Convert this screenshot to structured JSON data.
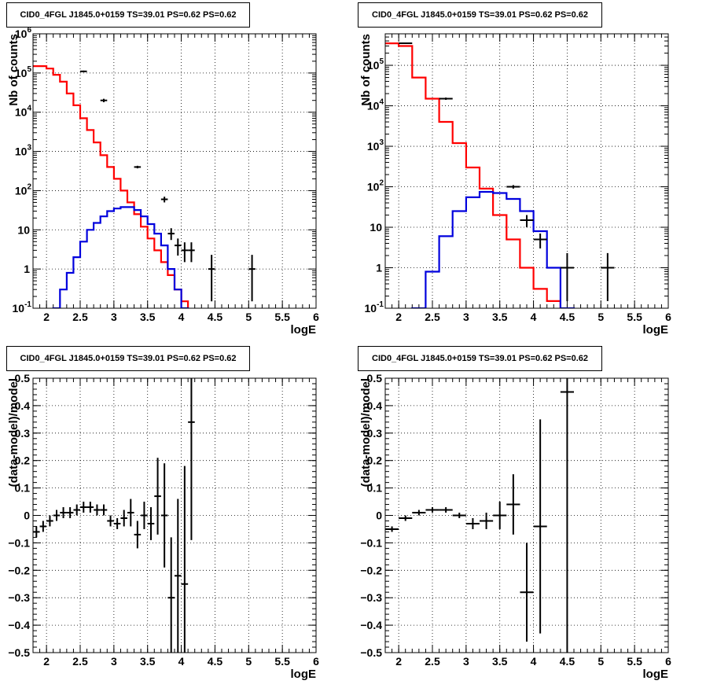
{
  "chart_data": [
    {
      "type": "line",
      "title": "CID0_4FGL J1845.0+0159 TS=39.01 PS=0.62 PS=0.62",
      "xlabel": "logE",
      "ylabel": "Nb of counts",
      "log_y": true,
      "xlim": [
        1.8,
        6.0
      ],
      "ylim": [
        0.1,
        1000000
      ],
      "grid": true,
      "x_ticks": [
        "2",
        "2.5",
        "3",
        "3.5",
        "4",
        "4.5",
        "5",
        "5.5",
        "6"
      ],
      "y_ticks": [
        {
          "v": 0.1,
          "b": "10",
          "e": "-1"
        },
        {
          "v": 1,
          "b": "1",
          "e": ""
        },
        {
          "v": 10,
          "b": "10",
          "e": ""
        },
        {
          "v": 100,
          "b": "10",
          "e": "2"
        },
        {
          "v": 1000,
          "b": "10",
          "e": "3"
        },
        {
          "v": 10000,
          "b": "10",
          "e": "4"
        },
        {
          "v": 100000,
          "b": "10",
          "e": "5"
        },
        {
          "v": 1000000,
          "b": "10",
          "e": "6"
        }
      ],
      "bin_width": 0.1,
      "bin_edges_start": 1.8,
      "series": [
        {
          "color": "#ff0000",
          "line": "step",
          "values": [
            150000,
            150000,
            130000,
            90000,
            60000,
            30000,
            15000,
            7000,
            3500,
            1700,
            800,
            400,
            200,
            100,
            50,
            25,
            12,
            6,
            3,
            1.5,
            0.7,
            0.3,
            0.15,
            0.08,
            0.05,
            0.05,
            0.05,
            0.05,
            0.05,
            0.05,
            0.05,
            0.05,
            0.05,
            0.05,
            0.05,
            0.05,
            0.05,
            0.05,
            0.05,
            0.05,
            0.05,
            0.05
          ]
        },
        {
          "color": "#0000dd",
          "line": "step",
          "values": [
            0.05,
            0.05,
            0.05,
            0.1,
            0.3,
            0.8,
            2,
            5,
            10,
            15,
            22,
            30,
            35,
            38,
            38,
            32,
            22,
            14,
            8,
            4,
            1,
            0.3,
            0.1,
            0.05,
            0.05,
            0.05,
            0.05,
            0.05,
            0.05,
            0.05,
            0.05,
            0.05,
            0.05,
            0.05,
            0.05,
            0.05,
            0.05,
            0.05,
            0.05,
            0.05,
            0.05,
            0.05
          ]
        }
      ],
      "data_points": [
        {
          "x": 2.55,
          "y": 110000,
          "ylo": 105000,
          "yhi": 115000
        },
        {
          "x": 2.85,
          "y": 20000,
          "ylo": 18000,
          "yhi": 22000
        },
        {
          "x": 3.35,
          "y": 400,
          "ylo": 370,
          "yhi": 430
        },
        {
          "x": 3.75,
          "y": 60,
          "ylo": 50,
          "yhi": 70
        },
        {
          "x": 3.85,
          "y": 8,
          "ylo": 5.5,
          "yhi": 11
        },
        {
          "x": 3.95,
          "y": 4,
          "ylo": 2.2,
          "yhi": 6
        },
        {
          "x": 4.05,
          "y": 3,
          "ylo": 1.5,
          "yhi": 4.8
        },
        {
          "x": 4.15,
          "y": 3,
          "ylo": 1.5,
          "yhi": 4.8
        },
        {
          "x": 4.45,
          "y": 1,
          "ylo": 0.15,
          "yhi": 2.3
        },
        {
          "x": 5.05,
          "y": 1,
          "ylo": 0.15,
          "yhi": 2.3
        }
      ]
    },
    {
      "type": "line",
      "title": "CID0_4FGL J1845.0+0159 TS=39.01 PS=0.62 PS=0.62",
      "xlabel": "logE",
      "ylabel": "Nb of counts",
      "log_y": true,
      "xlim": [
        1.8,
        6.0
      ],
      "ylim": [
        0.1,
        600000
      ],
      "grid": true,
      "x_ticks": [
        "2",
        "2.5",
        "3",
        "3.5",
        "4",
        "4.5",
        "5",
        "5.5",
        "6"
      ],
      "y_ticks": [
        {
          "v": 0.1,
          "b": "10",
          "e": "-1"
        },
        {
          "v": 1,
          "b": "1",
          "e": ""
        },
        {
          "v": 10,
          "b": "10",
          "e": ""
        },
        {
          "v": 100,
          "b": "10",
          "e": "2"
        },
        {
          "v": 1000,
          "b": "10",
          "e": "3"
        },
        {
          "v": 10000,
          "b": "10",
          "e": "4"
        },
        {
          "v": 100000,
          "b": "10",
          "e": "5"
        }
      ],
      "bin_width": 0.2,
      "bin_edges_start": 1.8,
      "series": [
        {
          "color": "#ff0000",
          "line": "step",
          "values": [
            350000,
            300000,
            50000,
            15000,
            4000,
            1200,
            300,
            90,
            20,
            5,
            1,
            0.3,
            0.15,
            0.05,
            0.05,
            0.05,
            0.05,
            0.05,
            0.05,
            0.05,
            0.05
          ]
        },
        {
          "color": "#0000dd",
          "line": "step",
          "values": [
            0.05,
            0.05,
            0.1,
            0.8,
            6,
            25,
            55,
            75,
            70,
            50,
            25,
            8,
            1,
            0.1,
            0.05,
            0.05,
            0.05,
            0.05,
            0.05,
            0.05,
            0.05
          ]
        }
      ],
      "data_points": [
        {
          "x": 2.1,
          "y": 350000,
          "ylo": 340000,
          "yhi": 360000
        },
        {
          "x": 2.7,
          "y": 15000,
          "ylo": 14000,
          "yhi": 16000
        },
        {
          "x": 3.7,
          "y": 100,
          "ylo": 90,
          "yhi": 110
        },
        {
          "x": 3.9,
          "y": 15,
          "ylo": 10,
          "yhi": 20
        },
        {
          "x": 4.1,
          "y": 5,
          "ylo": 3,
          "yhi": 7
        },
        {
          "x": 4.5,
          "y": 1,
          "ylo": 0.15,
          "yhi": 2.3
        },
        {
          "x": 5.1,
          "y": 1,
          "ylo": 0.15,
          "yhi": 2.3
        }
      ]
    },
    {
      "type": "scatter",
      "title": "CID0_4FGL J1845.0+0159 TS=39.01 PS=0.62 PS=0.62",
      "xlabel": "logE",
      "ylabel": "(data-model)/model",
      "log_y": false,
      "xlim": [
        1.8,
        6.0
      ],
      "ylim": [
        -0.5,
        0.5
      ],
      "grid": true,
      "x_ticks": [
        "2",
        "2.5",
        "3",
        "3.5",
        "4",
        "4.5",
        "5",
        "5.5",
        "6"
      ],
      "y_ticks": [
        {
          "v": -0.5,
          "t": "−0.5"
        },
        {
          "v": -0.4,
          "t": "−0.4"
        },
        {
          "v": -0.3,
          "t": "−0.3"
        },
        {
          "v": -0.2,
          "t": "−0.2"
        },
        {
          "v": -0.1,
          "t": "−0.1"
        },
        {
          "v": 0,
          "t": "0"
        },
        {
          "v": 0.1,
          "t": "0.1"
        },
        {
          "v": 0.2,
          "t": "0.2"
        },
        {
          "v": 0.3,
          "t": "0.3"
        },
        {
          "v": 0.4,
          "t": "0.4"
        },
        {
          "v": 0.5,
          "t": "0.5"
        }
      ],
      "bin_width": 0.1,
      "points": [
        {
          "x": 1.85,
          "y": -0.06,
          "e": 0.02
        },
        {
          "x": 1.95,
          "y": -0.04,
          "e": 0.02
        },
        {
          "x": 2.05,
          "y": -0.02,
          "e": 0.02
        },
        {
          "x": 2.15,
          "y": 0.0,
          "e": 0.02
        },
        {
          "x": 2.25,
          "y": 0.01,
          "e": 0.02
        },
        {
          "x": 2.35,
          "y": 0.01,
          "e": 0.02
        },
        {
          "x": 2.45,
          "y": 0.02,
          "e": 0.02
        },
        {
          "x": 2.55,
          "y": 0.03,
          "e": 0.02
        },
        {
          "x": 2.65,
          "y": 0.03,
          "e": 0.02
        },
        {
          "x": 2.75,
          "y": 0.02,
          "e": 0.02
        },
        {
          "x": 2.85,
          "y": 0.02,
          "e": 0.02
        },
        {
          "x": 2.95,
          "y": -0.02,
          "e": 0.02
        },
        {
          "x": 3.05,
          "y": -0.03,
          "e": 0.02
        },
        {
          "x": 3.15,
          "y": -0.01,
          "e": 0.03
        },
        {
          "x": 3.25,
          "y": 0.01,
          "e": 0.05
        },
        {
          "x": 3.35,
          "y": -0.07,
          "e": 0.05
        },
        {
          "x": 3.45,
          "y": 0.0,
          "e": 0.05
        },
        {
          "x": 3.55,
          "y": -0.03,
          "e": 0.06
        },
        {
          "x": 3.65,
          "y": 0.07,
          "e": 0.14
        },
        {
          "x": 3.75,
          "y": 0.0,
          "e": 0.19
        },
        {
          "x": 3.85,
          "y": -0.3,
          "e": 0.22
        },
        {
          "x": 3.95,
          "y": -0.22,
          "e": 0.28
        },
        {
          "x": 4.05,
          "y": -0.25,
          "e": 0.43
        },
        {
          "x": 4.15,
          "y": 0.34,
          "e": 0.43
        }
      ]
    },
    {
      "type": "scatter",
      "title": "CID0_4FGL J1845.0+0159 TS=39.01 PS=0.62 PS=0.62",
      "xlabel": "logE",
      "ylabel": "(data-model)/model",
      "log_y": false,
      "xlim": [
        1.8,
        6.0
      ],
      "ylim": [
        -0.5,
        0.5
      ],
      "grid": true,
      "x_ticks": [
        "2",
        "2.5",
        "3",
        "3.5",
        "4",
        "4.5",
        "5",
        "5.5",
        "6"
      ],
      "y_ticks": [
        {
          "v": -0.5,
          "t": "−0.5"
        },
        {
          "v": -0.4,
          "t": "−0.4"
        },
        {
          "v": -0.3,
          "t": "−0.3"
        },
        {
          "v": -0.2,
          "t": "−0.2"
        },
        {
          "v": -0.1,
          "t": "−0.1"
        },
        {
          "v": 0,
          "t": "0"
        },
        {
          "v": 0.1,
          "t": "0.1"
        },
        {
          "v": 0.2,
          "t": "0.2"
        },
        {
          "v": 0.3,
          "t": "0.3"
        },
        {
          "v": 0.4,
          "t": "0.4"
        },
        {
          "v": 0.5,
          "t": "0.5"
        }
      ],
      "bin_width": 0.2,
      "points": [
        {
          "x": 1.9,
          "y": -0.05,
          "e": 0.01
        },
        {
          "x": 2.1,
          "y": -0.01,
          "e": 0.01
        },
        {
          "x": 2.3,
          "y": 0.01,
          "e": 0.01
        },
        {
          "x": 2.5,
          "y": 0.02,
          "e": 0.01
        },
        {
          "x": 2.7,
          "y": 0.02,
          "e": 0.01
        },
        {
          "x": 2.9,
          "y": 0.0,
          "e": 0.01
        },
        {
          "x": 3.1,
          "y": -0.03,
          "e": 0.02
        },
        {
          "x": 3.3,
          "y": -0.02,
          "e": 0.03
        },
        {
          "x": 3.5,
          "y": 0.0,
          "e": 0.05
        },
        {
          "x": 3.7,
          "y": 0.04,
          "e": 0.11
        },
        {
          "x": 3.9,
          "y": -0.28,
          "e": 0.18
        },
        {
          "x": 4.1,
          "y": -0.04,
          "e": 0.39
        },
        {
          "x": 4.5,
          "y": 0.45,
          "e": 1.0
        }
      ]
    }
  ]
}
